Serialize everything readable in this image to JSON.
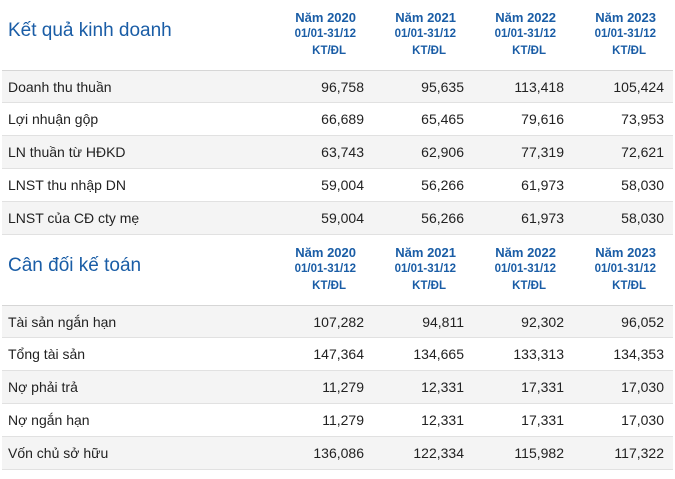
{
  "income": {
    "title": "Kết quả kinh doanh",
    "columns": [
      {
        "year": "Năm 2020",
        "range": "01/01-31/12",
        "unit": "KT/ĐL"
      },
      {
        "year": "Năm 2021",
        "range": "01/01-31/12",
        "unit": "KT/ĐL"
      },
      {
        "year": "Năm 2022",
        "range": "01/01-31/12",
        "unit": "KT/ĐL"
      },
      {
        "year": "Năm 2023",
        "range": "01/01-31/12",
        "unit": "KT/ĐL"
      }
    ],
    "rows": [
      {
        "label": "Doanh thu thuần",
        "values": [
          "96,758",
          "95,635",
          "113,418",
          "105,424"
        ]
      },
      {
        "label": "Lợi nhuận gộp",
        "values": [
          "66,689",
          "65,465",
          "79,616",
          "73,953"
        ]
      },
      {
        "label": "LN thuần từ HĐKD",
        "values": [
          "63,743",
          "62,906",
          "77,319",
          "72,621"
        ]
      },
      {
        "label": "LNST thu nhập DN",
        "values": [
          "59,004",
          "56,266",
          "61,973",
          "58,030"
        ]
      },
      {
        "label": "LNST của CĐ cty mẹ",
        "values": [
          "59,004",
          "56,266",
          "61,973",
          "58,030"
        ]
      }
    ]
  },
  "balance": {
    "title": "Cân đối kế toán",
    "columns": [
      {
        "year": "Năm 2020",
        "range": "01/01-31/12",
        "unit": "KT/ĐL"
      },
      {
        "year": "Năm 2021",
        "range": "01/01-31/12",
        "unit": "KT/ĐL"
      },
      {
        "year": "Năm 2022",
        "range": "01/01-31/12",
        "unit": "KT/ĐL"
      },
      {
        "year": "Năm 2023",
        "range": "01/01-31/12",
        "unit": "KT/ĐL"
      }
    ],
    "rows": [
      {
        "label": "Tài sản ngắn hạn",
        "values": [
          "107,282",
          "94,811",
          "92,302",
          "96,052"
        ]
      },
      {
        "label": "Tổng tài sản",
        "values": [
          "147,364",
          "134,665",
          "133,313",
          "134,353"
        ]
      },
      {
        "label": "Nợ phải trả",
        "values": [
          "11,279",
          "12,331",
          "17,331",
          "17,030"
        ]
      },
      {
        "label": "Nợ ngắn hạn",
        "values": [
          "11,279",
          "12,331",
          "17,331",
          "17,030"
        ]
      },
      {
        "label": "Vốn chủ sở hữu",
        "values": [
          "136,086",
          "122,334",
          "115,982",
          "117,322"
        ]
      }
    ]
  }
}
